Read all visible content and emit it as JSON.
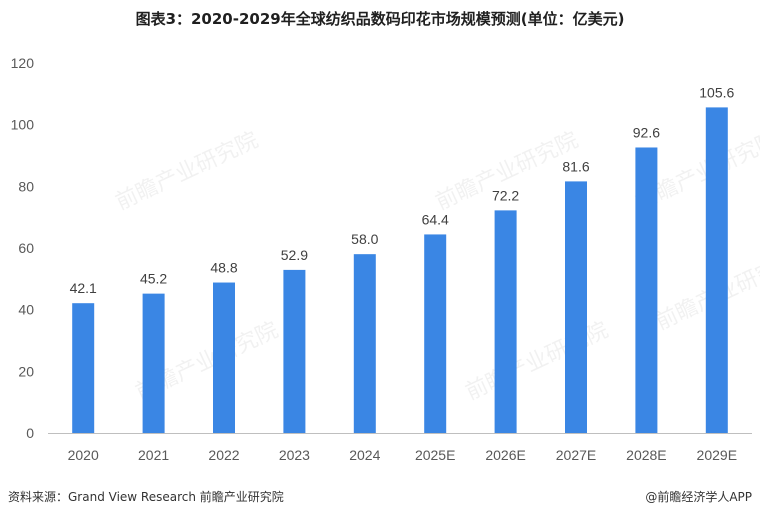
{
  "header": {
    "title": "图表3：2020-2029年全球纺织品数码印花市场规模预测(单位：亿美元)"
  },
  "footer": {
    "source": "资料来源：Grand View Research 前瞻产业研究院",
    "credit": "@前瞻经济学人APP"
  },
  "watermark": "前瞻产业研究院",
  "colors": {
    "bar": "#3a86e4",
    "axis": "#bfbfbf"
  },
  "chart_data": {
    "type": "bar",
    "categories": [
      "2020",
      "2021",
      "2022",
      "2023",
      "2024",
      "2025E",
      "2026E",
      "2027E",
      "2028E",
      "2029E"
    ],
    "values": [
      42.1,
      45.2,
      48.8,
      52.9,
      58.0,
      64.4,
      72.2,
      81.6,
      92.6,
      105.6
    ],
    "value_labels": [
      "42.1",
      "45.2",
      "48.8",
      "52.9",
      "58.0",
      "64.4",
      "72.2",
      "81.6",
      "92.6",
      "105.6"
    ],
    "yticks": [
      "0",
      "20",
      "40",
      "60",
      "80",
      "100",
      "120"
    ],
    "ylim": [
      0,
      120
    ],
    "grid": false
  }
}
